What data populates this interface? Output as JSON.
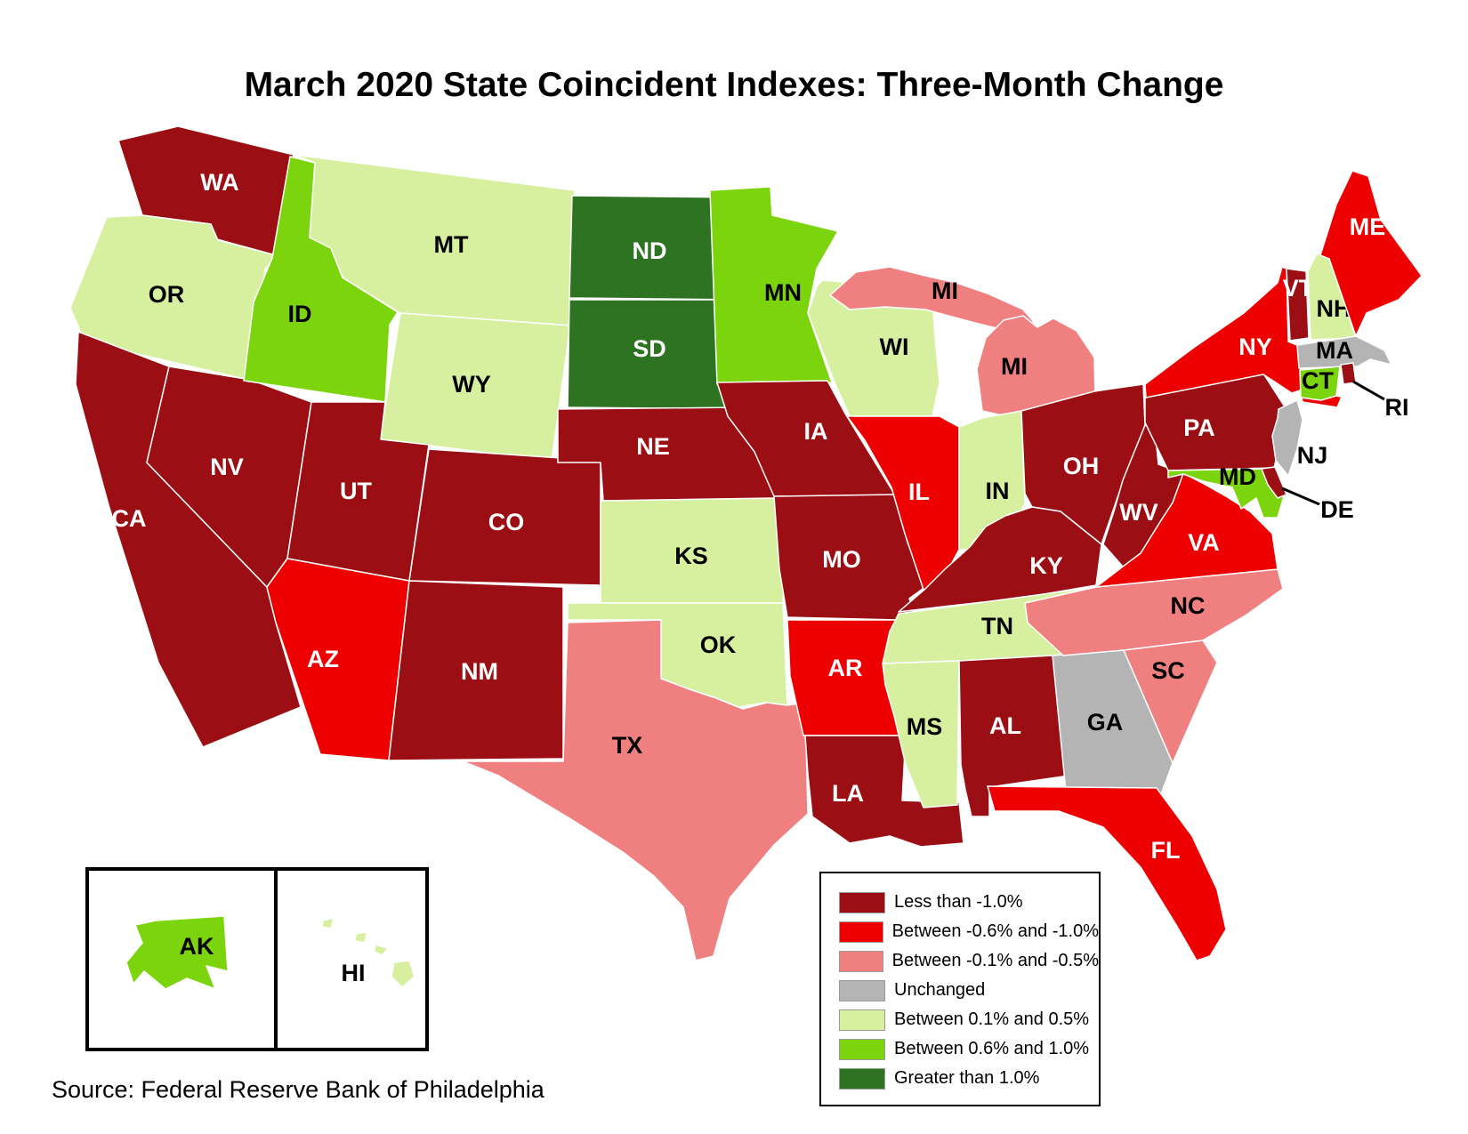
{
  "title": "March 2020 State Coincident Indexes: Three-Month Change",
  "source": "Source: Federal Reserve Bank of Philadelphia",
  "categories": {
    "less_than_-1.0": {
      "color": "#9B0E13",
      "text_color": "#FFFFFF"
    },
    "between_-0.6_and_-1.0": {
      "color": "#EE0000",
      "text_color": "#FFFFFF"
    },
    "between_-0.1_and_-0.5": {
      "color": "#F08080",
      "text_color": "#000000"
    },
    "unchanged": {
      "color": "#B4B4B4",
      "text_color": "#000000"
    },
    "between_0.1_and_0.5": {
      "color": "#D7F0A0",
      "text_color": "#000000"
    },
    "between_0.6_and_1.0": {
      "color": "#7CD40C",
      "text_color": "#000000"
    },
    "greater_than_1.0": {
      "color": "#2E7321",
      "text_color": "#FFFFFF"
    }
  },
  "legend": {
    "items": [
      {
        "label": "Less than -1.0%",
        "category": "less_than_-1.0"
      },
      {
        "label": "Between -0.6% and -1.0%",
        "category": "between_-0.6_and_-1.0"
      },
      {
        "label": "Between -0.1% and -0.5%",
        "category": "between_-0.1_and_-0.5"
      },
      {
        "label": "Unchanged",
        "category": "unchanged"
      },
      {
        "label": "Between 0.1% and 0.5%",
        "category": "between_0.1_and_0.5"
      },
      {
        "label": "Between 0.6% and 1.0%",
        "category": "between_0.6_and_1.0"
      },
      {
        "label": "Greater than 1.0%",
        "category": "greater_than_1.0"
      }
    ]
  },
  "states": [
    {
      "code": "WA",
      "category": "less_than_-1.0"
    },
    {
      "code": "OR",
      "category": "between_0.1_and_0.5"
    },
    {
      "code": "CA",
      "category": "less_than_-1.0"
    },
    {
      "code": "NV",
      "category": "less_than_-1.0"
    },
    {
      "code": "ID",
      "category": "between_0.6_and_1.0"
    },
    {
      "code": "MT",
      "category": "between_0.1_and_0.5"
    },
    {
      "code": "WY",
      "category": "between_0.1_and_0.5"
    },
    {
      "code": "UT",
      "category": "less_than_-1.0"
    },
    {
      "code": "AZ",
      "category": "between_-0.6_and_-1.0"
    },
    {
      "code": "CO",
      "category": "less_than_-1.0"
    },
    {
      "code": "NM",
      "category": "less_than_-1.0"
    },
    {
      "code": "ND",
      "category": "greater_than_1.0"
    },
    {
      "code": "SD",
      "category": "greater_than_1.0"
    },
    {
      "code": "NE",
      "category": "less_than_-1.0"
    },
    {
      "code": "KS",
      "category": "between_0.1_and_0.5"
    },
    {
      "code": "OK",
      "category": "between_0.1_and_0.5"
    },
    {
      "code": "TX",
      "category": "between_-0.1_and_-0.5"
    },
    {
      "code": "MN",
      "category": "between_0.6_and_1.0"
    },
    {
      "code": "IA",
      "category": "less_than_-1.0"
    },
    {
      "code": "MO",
      "category": "less_than_-1.0"
    },
    {
      "code": "AR",
      "category": "between_-0.6_and_-1.0"
    },
    {
      "code": "LA",
      "category": "less_than_-1.0"
    },
    {
      "code": "WI",
      "category": "between_0.1_and_0.5"
    },
    {
      "code": "IL",
      "category": "between_-0.6_and_-1.0"
    },
    {
      "code": "MI",
      "category": "between_-0.1_and_-0.5"
    },
    {
      "code": "IN",
      "category": "between_0.1_and_0.5"
    },
    {
      "code": "OH",
      "category": "less_than_-1.0"
    },
    {
      "code": "KY",
      "category": "less_than_-1.0"
    },
    {
      "code": "TN",
      "category": "between_0.1_and_0.5"
    },
    {
      "code": "MS",
      "category": "between_0.1_and_0.5"
    },
    {
      "code": "AL",
      "category": "less_than_-1.0"
    },
    {
      "code": "GA",
      "category": "unchanged"
    },
    {
      "code": "FL",
      "category": "between_-0.6_and_-1.0"
    },
    {
      "code": "SC",
      "category": "between_-0.1_and_-0.5"
    },
    {
      "code": "NC",
      "category": "between_-0.1_and_-0.5"
    },
    {
      "code": "VA",
      "category": "between_-0.6_and_-1.0"
    },
    {
      "code": "WV",
      "category": "less_than_-1.0"
    },
    {
      "code": "PA",
      "category": "less_than_-1.0"
    },
    {
      "code": "NY",
      "category": "between_-0.6_and_-1.0"
    },
    {
      "code": "NJ",
      "category": "unchanged"
    },
    {
      "code": "MD",
      "category": "between_0.6_and_1.0"
    },
    {
      "code": "DE",
      "category": "less_than_-1.0"
    },
    {
      "code": "VT",
      "category": "less_than_-1.0"
    },
    {
      "code": "NH",
      "category": "between_0.1_and_0.5"
    },
    {
      "code": "ME",
      "category": "between_-0.6_and_-1.0"
    },
    {
      "code": "MA",
      "category": "unchanged"
    },
    {
      "code": "CT",
      "category": "between_0.6_and_1.0"
    },
    {
      "code": "RI",
      "category": "less_than_-1.0"
    },
    {
      "code": "AK",
      "category": "between_0.6_and_1.0"
    },
    {
      "code": "HI",
      "category": "between_0.1_and_0.5"
    }
  ]
}
